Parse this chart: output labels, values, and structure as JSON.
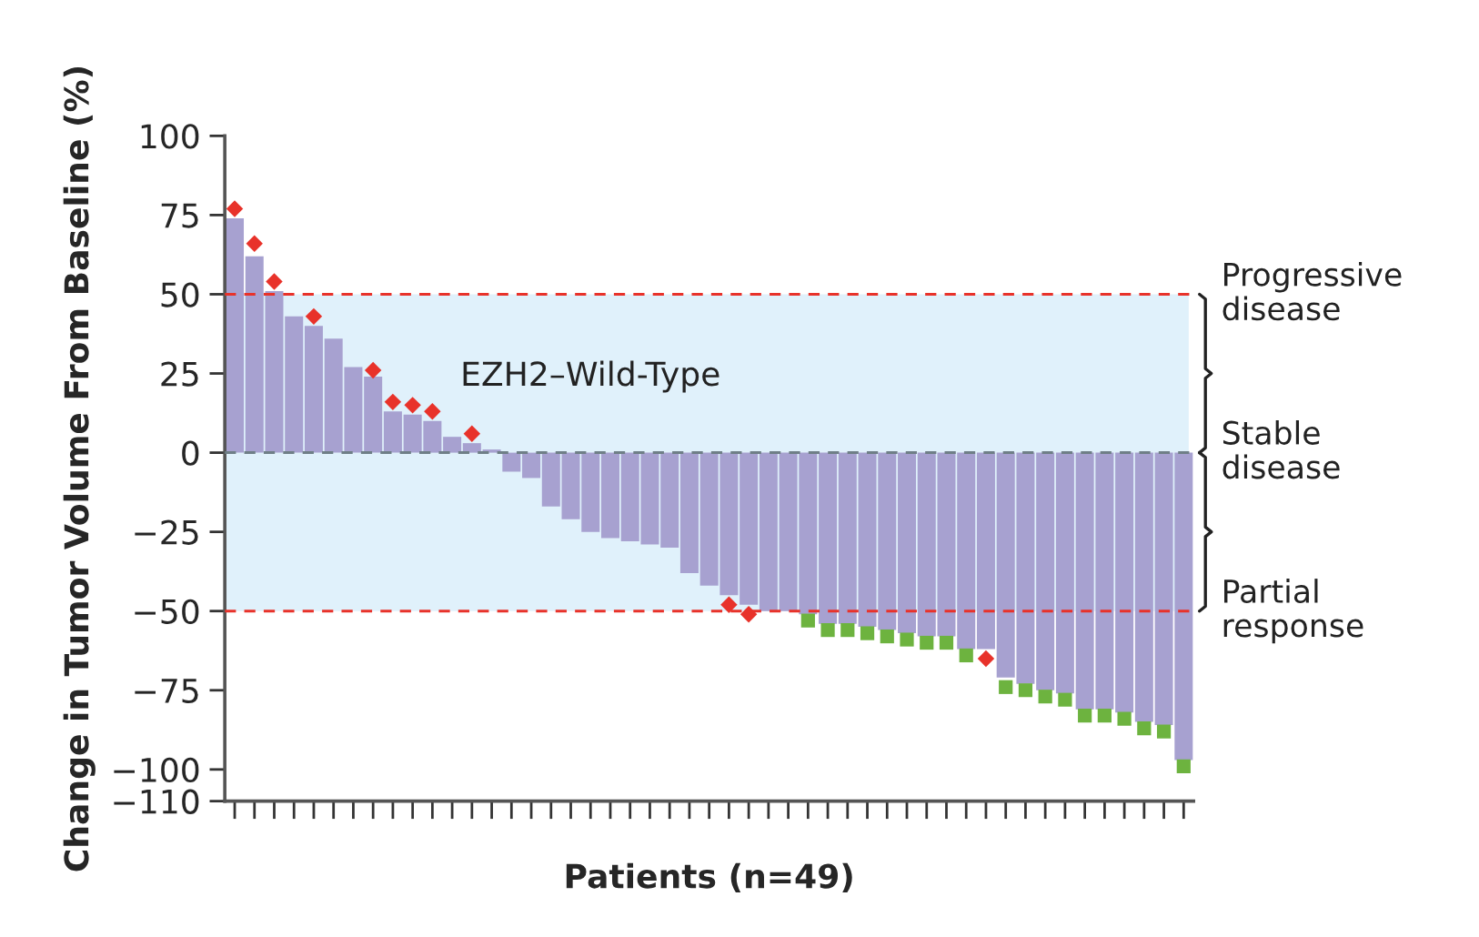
{
  "chart_data": {
    "type": "bar",
    "xlabel": "Patients (n=49)",
    "ylabel": "Change in Tumor Volume From Baseline (%)",
    "categories": [
      null,
      null,
      null,
      null,
      null,
      null,
      null,
      null,
      null,
      null,
      null,
      null,
      null,
      null,
      null,
      null,
      null,
      null,
      null,
      null,
      null,
      null,
      null,
      null,
      null,
      null,
      null,
      null,
      null,
      null,
      null,
      null,
      null,
      null,
      null,
      null,
      null,
      null,
      null,
      null,
      null,
      null,
      null,
      null,
      null,
      null,
      null,
      null,
      null
    ],
    "series": [
      {
        "color": "#a7a1d0",
        "values": [
          74,
          62,
          51,
          43,
          40,
          36,
          27,
          24,
          13,
          12,
          10,
          5,
          3,
          1,
          -6,
          -8,
          -17,
          -21,
          -25,
          -27,
          -28,
          -29,
          -30,
          -38,
          -42,
          -45,
          -48,
          -50,
          -50,
          -51,
          -54,
          -54,
          -55,
          -56,
          -57,
          -58,
          -58,
          -62,
          -62,
          -71,
          -73,
          -75,
          -76,
          -81,
          -81,
          -82,
          -85,
          -86,
          -97
        ]
      },
      {
        "type": "scatter",
        "marker": "diamond",
        "color": "#e8322a",
        "values": [
          77,
          66,
          54,
          null,
          43,
          null,
          null,
          26,
          16,
          15,
          13,
          null,
          6,
          null,
          null,
          null,
          null,
          null,
          null,
          null,
          null,
          null,
          null,
          null,
          null,
          -48,
          -51,
          null,
          null,
          null,
          null,
          null,
          null,
          null,
          null,
          null,
          null,
          null,
          -65,
          null,
          null,
          null,
          null,
          null,
          null,
          null,
          null,
          null,
          null
        ]
      },
      {
        "type": "scatter",
        "marker": "square",
        "color": "#6db33f",
        "values": [
          null,
          null,
          null,
          null,
          null,
          null,
          null,
          null,
          null,
          null,
          null,
          null,
          null,
          null,
          null,
          null,
          null,
          null,
          null,
          null,
          null,
          null,
          null,
          null,
          null,
          null,
          null,
          null,
          null,
          -53,
          -56,
          -56,
          -57,
          -58,
          -59,
          -60,
          -60,
          -64,
          null,
          -74,
          -75,
          -77,
          -78,
          -83,
          -83,
          -84,
          -87,
          -88,
          -99
        ]
      }
    ],
    "ylim": [
      -110,
      100
    ],
    "yticks": [
      100,
      75,
      50,
      25,
      0,
      {
        "value": -25,
        "label": "−25"
      },
      {
        "value": -50,
        "label": "−50"
      },
      {
        "value": -75,
        "label": "−75"
      },
      {
        "value": -100,
        "label": "−100"
      },
      {
        "value": -110,
        "label": "−110"
      }
    ],
    "tick_labels": "y",
    "grid": false,
    "bands": [
      {
        "axis": "y",
        "from": -50,
        "to": 50,
        "label": "EZH2–Wild-Type",
        "color": "#e0f1fb"
      }
    ],
    "ref_lines": [
      {
        "axis": "y",
        "value": 50,
        "label": "Progressive\ndisease",
        "color": "#e8322a",
        "line_style": "dashed"
      },
      {
        "axis": "y",
        "value": 0,
        "label": "Stable\ndisease",
        "color": "#6f7f87",
        "line_style": "dashed"
      },
      {
        "axis": "y",
        "value": -50,
        "label": "Partial\nresponse",
        "color": "#e8322a",
        "line_style": "dashed"
      }
    ]
  }
}
